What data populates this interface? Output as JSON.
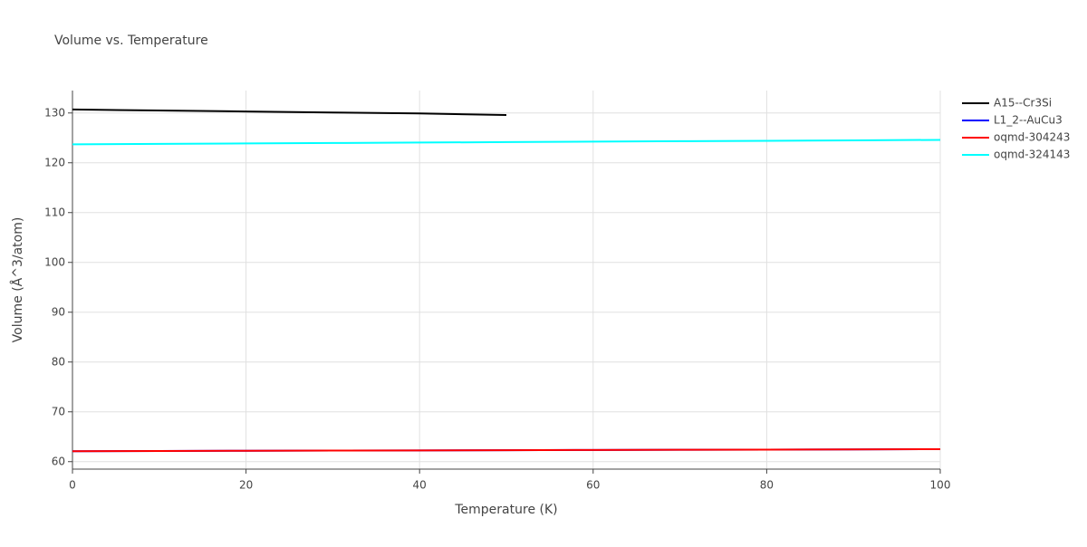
{
  "chart_data": {
    "type": "line",
    "title": "Volume vs. Temperature",
    "x_label": "Temperature (K)",
    "y_label": "Volume (Å^3/atom)",
    "x": [
      0,
      10,
      20,
      30,
      40,
      50,
      60,
      70,
      80,
      90,
      100
    ],
    "series": [
      {
        "name": "A15--Cr3Si",
        "color": "#000000",
        "values": [
          130.7,
          130.5,
          130.3,
          130.1,
          129.9,
          129.6,
          null,
          null,
          null,
          null,
          null
        ]
      },
      {
        "name": "L1_2--AuCu3",
        "color": "#0000ff",
        "values": [
          62.1,
          62.14,
          62.18,
          62.22,
          62.26,
          62.3,
          62.34,
          62.38,
          62.42,
          62.46,
          62.5
        ]
      },
      {
        "name": "oqmd-304243",
        "color": "#ff0000",
        "values": [
          62.1,
          62.14,
          62.18,
          62.22,
          62.26,
          62.3,
          62.34,
          62.38,
          62.42,
          62.46,
          62.5
        ]
      },
      {
        "name": "oqmd-324143",
        "color": "#00ffff",
        "values": [
          123.7,
          123.79,
          123.88,
          123.97,
          124.06,
          124.15,
          124.24,
          124.33,
          124.42,
          124.51,
          124.6
        ]
      }
    ],
    "xlim": [
      0,
      100
    ],
    "xticks": [
      0,
      20,
      40,
      60,
      80,
      100
    ],
    "ylim": [
      58.5,
      134.5
    ],
    "yticks": [
      60,
      70,
      80,
      90,
      100,
      110,
      120,
      130
    ],
    "grid": true,
    "legend": "right"
  }
}
